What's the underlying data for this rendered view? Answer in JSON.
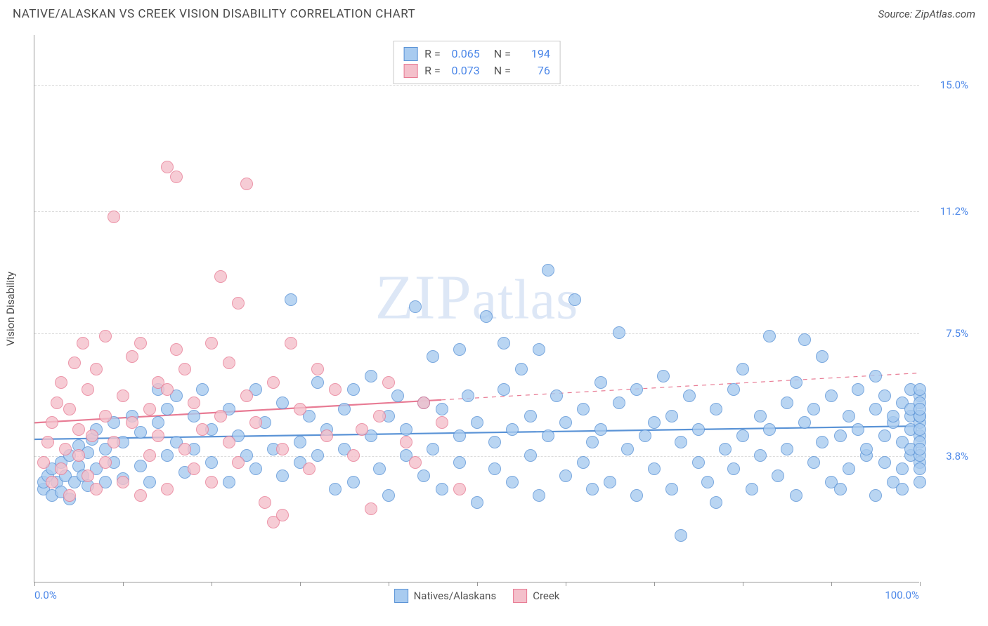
{
  "header": {
    "title": "NATIVE/ALASKAN VS CREEK VISION DISABILITY CORRELATION CHART",
    "source": "Source: ZipAtlas.com"
  },
  "watermark": "ZIPatlas",
  "chart": {
    "type": "scatter",
    "background_color": "#ffffff",
    "grid_color": "#dcdcdc",
    "axis_color": "#999999",
    "label_color": "#4a86e8",
    "text_color": "#4a4a4a",
    "label_fontsize": 15,
    "title_fontsize": 17,
    "y_axis_title": "Vision Disability",
    "xlim": [
      0,
      100
    ],
    "ylim": [
      0,
      16.5
    ],
    "x_ticks": [
      0,
      10,
      20,
      30,
      40,
      50,
      60,
      70,
      80,
      90,
      100
    ],
    "x_labels": {
      "min": "0.0%",
      "max": "100.0%"
    },
    "y_gridlines": [
      3.8,
      7.5,
      11.2,
      15.0
    ],
    "y_tick_labels": [
      "3.8%",
      "7.5%",
      "11.2%",
      "15.0%"
    ],
    "marker_radius": 9,
    "marker_border_width": 1.2,
    "marker_fill_opacity": 0.35,
    "series": [
      {
        "id": "natives",
        "label": "Natives/Alaskans",
        "fill_color": "#a8cbf0",
        "stroke_color": "#5a93d6",
        "R": "0.065",
        "N": "194",
        "trend": {
          "y_at_x0": 4.3,
          "y_at_x100": 4.7,
          "solid_until_x": 100,
          "line_width": 2.2
        },
        "points": [
          [
            1,
            2.8
          ],
          [
            1,
            3.0
          ],
          [
            1.5,
            3.2
          ],
          [
            2,
            2.6
          ],
          [
            2,
            3.4
          ],
          [
            2.5,
            3.0
          ],
          [
            3,
            2.7
          ],
          [
            3,
            3.6
          ],
          [
            3.5,
            3.2
          ],
          [
            4,
            2.5
          ],
          [
            4,
            3.8
          ],
          [
            4.5,
            3.0
          ],
          [
            5,
            3.5
          ],
          [
            5,
            4.1
          ],
          [
            5.5,
            3.2
          ],
          [
            6,
            3.9
          ],
          [
            6,
            2.9
          ],
          [
            6.5,
            4.3
          ],
          [
            7,
            3.4
          ],
          [
            7,
            4.6
          ],
          [
            8,
            3.0
          ],
          [
            8,
            4.0
          ],
          [
            9,
            3.6
          ],
          [
            9,
            4.8
          ],
          [
            10,
            3.1
          ],
          [
            10,
            4.2
          ],
          [
            11,
            5.0
          ],
          [
            12,
            3.5
          ],
          [
            12,
            4.5
          ],
          [
            13,
            3.0
          ],
          [
            14,
            4.8
          ],
          [
            14,
            5.8
          ],
          [
            15,
            3.8
          ],
          [
            15,
            5.2
          ],
          [
            16,
            4.2
          ],
          [
            16,
            5.6
          ],
          [
            17,
            3.3
          ],
          [
            18,
            5.0
          ],
          [
            18,
            4.0
          ],
          [
            19,
            5.8
          ],
          [
            20,
            3.6
          ],
          [
            20,
            4.6
          ],
          [
            22,
            5.2
          ],
          [
            22,
            3.0
          ],
          [
            23,
            4.4
          ],
          [
            24,
            3.8
          ],
          [
            25,
            5.8
          ],
          [
            25,
            3.4
          ],
          [
            26,
            4.8
          ],
          [
            27,
            4.0
          ],
          [
            28,
            3.2
          ],
          [
            28,
            5.4
          ],
          [
            29,
            8.5
          ],
          [
            30,
            4.2
          ],
          [
            30,
            3.6
          ],
          [
            31,
            5.0
          ],
          [
            32,
            6.0
          ],
          [
            32,
            3.8
          ],
          [
            33,
            4.6
          ],
          [
            34,
            2.8
          ],
          [
            35,
            5.2
          ],
          [
            35,
            4.0
          ],
          [
            36,
            3.0
          ],
          [
            36,
            5.8
          ],
          [
            38,
            4.4
          ],
          [
            38,
            6.2
          ],
          [
            39,
            3.4
          ],
          [
            40,
            5.0
          ],
          [
            40,
            2.6
          ],
          [
            41,
            5.6
          ],
          [
            42,
            3.8
          ],
          [
            42,
            4.6
          ],
          [
            43,
            8.3
          ],
          [
            44,
            3.2
          ],
          [
            44,
            5.4
          ],
          [
            45,
            6.8
          ],
          [
            45,
            4.0
          ],
          [
            46,
            2.8
          ],
          [
            46,
            5.2
          ],
          [
            48,
            4.4
          ],
          [
            48,
            3.6
          ],
          [
            48,
            7.0
          ],
          [
            49,
            5.6
          ],
          [
            50,
            4.8
          ],
          [
            50,
            2.4
          ],
          [
            51,
            8.0
          ],
          [
            52,
            4.2
          ],
          [
            52,
            3.4
          ],
          [
            53,
            5.8
          ],
          [
            53,
            7.2
          ],
          [
            54,
            4.6
          ],
          [
            54,
            3.0
          ],
          [
            55,
            6.4
          ],
          [
            56,
            5.0
          ],
          [
            56,
            3.8
          ],
          [
            57,
            2.6
          ],
          [
            57,
            7.0
          ],
          [
            58,
            4.4
          ],
          [
            58,
            9.4
          ],
          [
            59,
            5.6
          ],
          [
            60,
            3.2
          ],
          [
            60,
            4.8
          ],
          [
            61,
            8.5
          ],
          [
            62,
            5.2
          ],
          [
            62,
            3.6
          ],
          [
            63,
            2.8
          ],
          [
            63,
            4.2
          ],
          [
            64,
            6.0
          ],
          [
            64,
            4.6
          ],
          [
            65,
            3.0
          ],
          [
            66,
            5.4
          ],
          [
            66,
            7.5
          ],
          [
            67,
            4.0
          ],
          [
            68,
            2.6
          ],
          [
            68,
            5.8
          ],
          [
            69,
            4.4
          ],
          [
            70,
            4.8
          ],
          [
            70,
            3.4
          ],
          [
            71,
            6.2
          ],
          [
            72,
            5.0
          ],
          [
            72,
            2.8
          ],
          [
            73,
            1.4
          ],
          [
            73,
            4.2
          ],
          [
            74,
            5.6
          ],
          [
            75,
            3.6
          ],
          [
            75,
            4.6
          ],
          [
            76,
            3.0
          ],
          [
            77,
            5.2
          ],
          [
            77,
            2.4
          ],
          [
            78,
            4.0
          ],
          [
            79,
            5.8
          ],
          [
            79,
            3.4
          ],
          [
            80,
            4.4
          ],
          [
            80,
            6.4
          ],
          [
            81,
            2.8
          ],
          [
            82,
            5.0
          ],
          [
            82,
            3.8
          ],
          [
            83,
            4.6
          ],
          [
            83,
            7.4
          ],
          [
            84,
            3.2
          ],
          [
            85,
            5.4
          ],
          [
            85,
            4.0
          ],
          [
            86,
            2.6
          ],
          [
            86,
            6.0
          ],
          [
            87,
            4.8
          ],
          [
            87,
            7.3
          ],
          [
            88,
            3.6
          ],
          [
            88,
            5.2
          ],
          [
            89,
            4.2
          ],
          [
            89,
            6.8
          ],
          [
            90,
            3.0
          ],
          [
            90,
            5.6
          ],
          [
            91,
            4.4
          ],
          [
            91,
            2.8
          ],
          [
            92,
            5.0
          ],
          [
            92,
            3.4
          ],
          [
            93,
            4.6
          ],
          [
            93,
            5.8
          ],
          [
            94,
            3.8
          ],
          [
            94,
            4.0
          ],
          [
            95,
            5.2
          ],
          [
            95,
            2.6
          ],
          [
            95,
            6.2
          ],
          [
            96,
            4.4
          ],
          [
            96,
            3.6
          ],
          [
            96,
            5.6
          ],
          [
            97,
            4.8
          ],
          [
            97,
            3.0
          ],
          [
            97,
            5.0
          ],
          [
            98,
            4.2
          ],
          [
            98,
            5.4
          ],
          [
            98,
            3.4
          ],
          [
            98,
            2.8
          ],
          [
            99,
            4.6
          ],
          [
            99,
            5.8
          ],
          [
            99,
            3.8
          ],
          [
            99,
            5.0
          ],
          [
            99,
            4.0
          ],
          [
            99,
            5.2
          ],
          [
            100,
            4.4
          ],
          [
            100,
            3.6
          ],
          [
            100,
            5.6
          ],
          [
            100,
            4.8
          ],
          [
            100,
            3.0
          ],
          [
            100,
            5.0
          ],
          [
            100,
            4.2
          ],
          [
            100,
            5.4
          ],
          [
            100,
            3.4
          ],
          [
            100,
            4.6
          ],
          [
            100,
            5.8
          ],
          [
            100,
            3.8
          ],
          [
            100,
            5.0
          ],
          [
            100,
            4.0
          ],
          [
            100,
            5.2
          ]
        ]
      },
      {
        "id": "creek",
        "label": "Creek",
        "fill_color": "#f4c0cb",
        "stroke_color": "#e87b94",
        "R": "0.073",
        "N": "76",
        "trend": {
          "y_at_x0": 4.8,
          "y_at_x100": 6.3,
          "solid_until_x": 46,
          "line_width": 2.2
        },
        "points": [
          [
            1,
            3.6
          ],
          [
            1.5,
            4.2
          ],
          [
            2,
            3.0
          ],
          [
            2,
            4.8
          ],
          [
            2.5,
            5.4
          ],
          [
            3,
            3.4
          ],
          [
            3,
            6.0
          ],
          [
            3.5,
            4.0
          ],
          [
            4,
            2.6
          ],
          [
            4,
            5.2
          ],
          [
            4.5,
            6.6
          ],
          [
            5,
            3.8
          ],
          [
            5,
            4.6
          ],
          [
            5.5,
            7.2
          ],
          [
            6,
            3.2
          ],
          [
            6,
            5.8
          ],
          [
            6.5,
            4.4
          ],
          [
            7,
            2.8
          ],
          [
            7,
            6.4
          ],
          [
            8,
            5.0
          ],
          [
            8,
            3.6
          ],
          [
            8,
            7.4
          ],
          [
            9,
            4.2
          ],
          [
            9,
            11.0
          ],
          [
            10,
            5.6
          ],
          [
            10,
            3.0
          ],
          [
            11,
            6.8
          ],
          [
            11,
            4.8
          ],
          [
            12,
            2.6
          ],
          [
            12,
            7.2
          ],
          [
            13,
            5.2
          ],
          [
            13,
            3.8
          ],
          [
            14,
            6.0
          ],
          [
            14,
            4.4
          ],
          [
            15,
            2.8
          ],
          [
            15,
            5.8
          ],
          [
            15,
            12.5
          ],
          [
            16,
            7.0
          ],
          [
            16,
            12.2
          ],
          [
            17,
            4.0
          ],
          [
            17,
            6.4
          ],
          [
            18,
            3.4
          ],
          [
            18,
            5.4
          ],
          [
            19,
            4.6
          ],
          [
            20,
            7.2
          ],
          [
            20,
            3.0
          ],
          [
            21,
            5.0
          ],
          [
            21,
            9.2
          ],
          [
            22,
            4.2
          ],
          [
            22,
            6.6
          ],
          [
            23,
            3.6
          ],
          [
            23,
            8.4
          ],
          [
            24,
            5.6
          ],
          [
            24,
            12.0
          ],
          [
            25,
            4.8
          ],
          [
            26,
            2.4
          ],
          [
            27,
            6.0
          ],
          [
            27,
            1.8
          ],
          [
            28,
            4.0
          ],
          [
            28,
            2.0
          ],
          [
            29,
            7.2
          ],
          [
            30,
            5.2
          ],
          [
            31,
            3.4
          ],
          [
            32,
            6.4
          ],
          [
            33,
            4.4
          ],
          [
            34,
            5.8
          ],
          [
            36,
            3.8
          ],
          [
            37,
            4.6
          ],
          [
            38,
            2.2
          ],
          [
            39,
            5.0
          ],
          [
            40,
            6.0
          ],
          [
            42,
            4.2
          ],
          [
            43,
            3.6
          ],
          [
            44,
            5.4
          ],
          [
            46,
            4.8
          ],
          [
            48,
            2.8
          ]
        ]
      }
    ]
  },
  "stats_legend": {
    "r_label": "R =",
    "n_label": "N ="
  }
}
